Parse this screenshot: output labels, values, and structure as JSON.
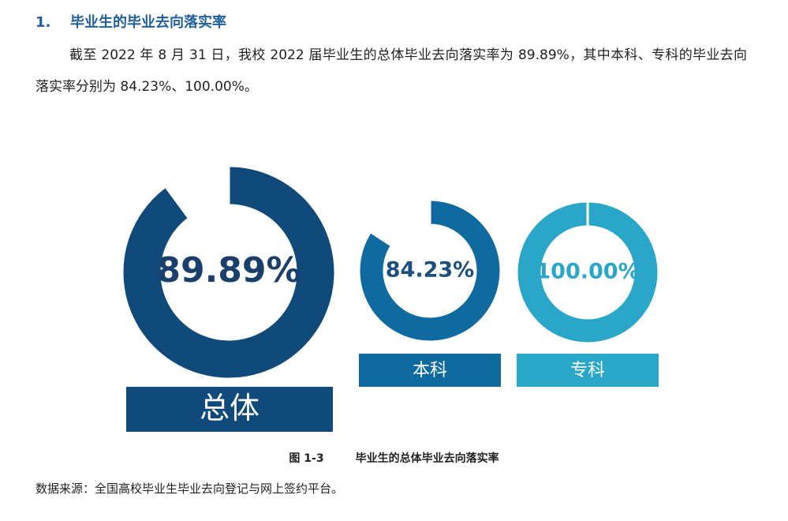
{
  "heading": {
    "number": "1.",
    "title": "毕业生的毕业去向落实率"
  },
  "paragraph": "截至 2022 年 8 月 31 日，我校 2022 届毕业生的总体毕业去向落实率为 89.89%，其中本科、专科的毕业去向落实率分别为 84.23%、100.00%。",
  "chart_data": [
    {
      "type": "pie",
      "categories": [
        "总体",
        null
      ],
      "values": [
        89.89,
        10.11
      ],
      "value_labels": [
        "89.89%",
        null
      ],
      "colors": [
        "#0f4a7a",
        "#ffffff"
      ]
    },
    {
      "type": "pie",
      "categories": [
        "本科",
        null
      ],
      "values": [
        84.23,
        15.77
      ],
      "value_labels": [
        "84.23%",
        null
      ],
      "colors": [
        "#0f6aa0",
        "#ffffff"
      ]
    },
    {
      "type": "pie",
      "categories": [
        "专科",
        null
      ],
      "values": [
        100.0,
        0
      ],
      "value_labels": [
        "100.00%",
        null
      ],
      "colors": [
        "#2aa6c9",
        "#ffffff"
      ]
    }
  ],
  "caption": {
    "number": "图 1-3",
    "text": "毕业生的总体毕业去向落实率"
  },
  "source": "数据来源：全国高校毕业生毕业去向登记与网上签约平台。"
}
